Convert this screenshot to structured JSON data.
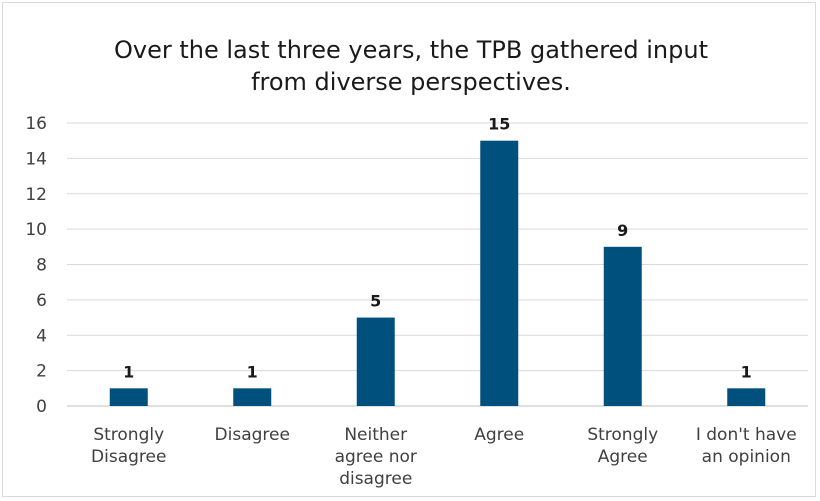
{
  "chart_data": {
    "type": "bar",
    "title": [
      "Over the last three years, the TPB gathered input",
      "from diverse perspectives."
    ],
    "categories": [
      [
        "Strongly",
        "Disagree"
      ],
      [
        "Disagree"
      ],
      [
        "Neither",
        "agree nor",
        "disagree"
      ],
      [
        "Agree"
      ],
      [
        "Strongly",
        "Agree"
      ],
      [
        "I don't have",
        "an opinion"
      ]
    ],
    "values": [
      1,
      1,
      5,
      15,
      9,
      1
    ],
    "data_labels": [
      "1",
      "1",
      "5",
      "15",
      "9",
      "1"
    ],
    "ylim": [
      0,
      16
    ],
    "yticks": [
      "0",
      "2",
      "4",
      "6",
      "8",
      "10",
      "12",
      "14",
      "16"
    ],
    "grid": true,
    "legend": "none",
    "bar_color": "#00507d"
  }
}
